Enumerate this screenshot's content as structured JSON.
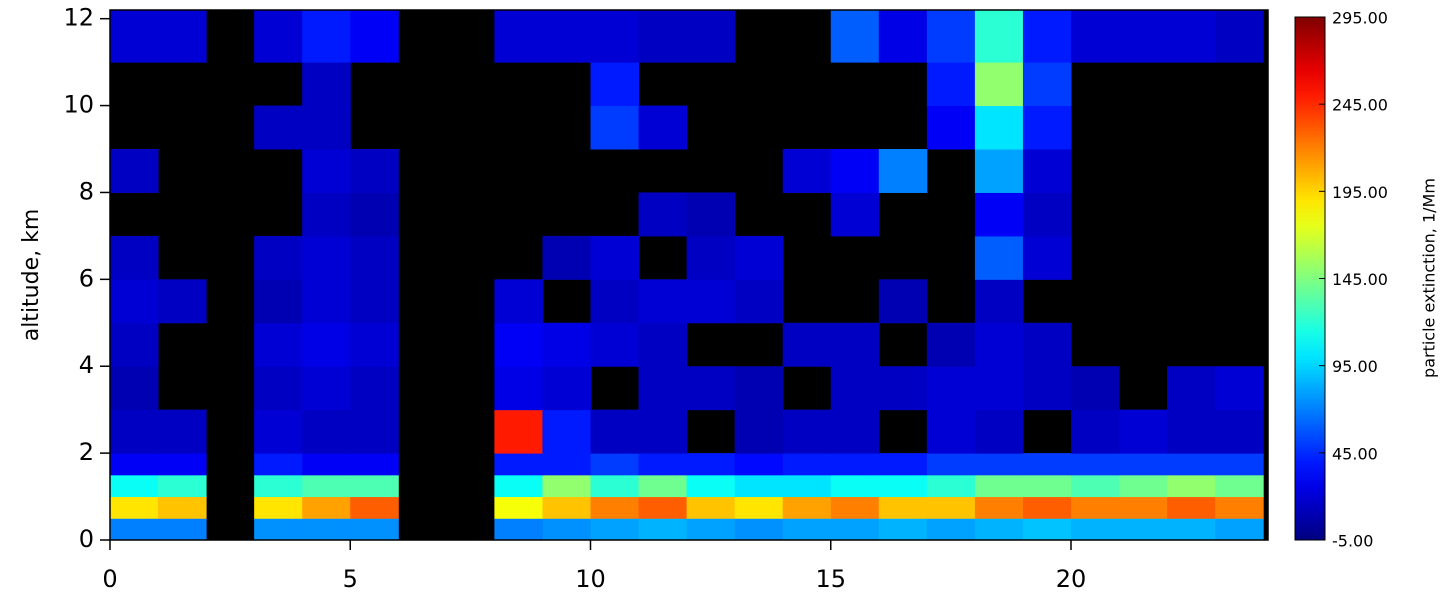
{
  "chart_data": {
    "type": "heatmap",
    "ylabel": "altitude, km",
    "colorbar_label": "particle extinction, 1/Mm",
    "colormap": "jet",
    "xlim": [
      0,
      24.1
    ],
    "ylim": [
      0,
      12.2
    ],
    "xticks": [
      0,
      5,
      10,
      15,
      20
    ],
    "yticks": [
      0,
      2,
      4,
      6,
      8,
      10,
      12
    ],
    "clim": [
      -5,
      295
    ],
    "cticks": [
      {
        "value": -5,
        "label": "-5.00"
      },
      {
        "value": 45,
        "label": "45.00"
      },
      {
        "value": 95,
        "label": "95.00"
      },
      {
        "value": 145,
        "label": "145.00"
      },
      {
        "value": 195,
        "label": "195.00"
      },
      {
        "value": 245,
        "label": "245.00"
      },
      {
        "value": 295,
        "label": "295.00"
      }
    ],
    "x_edges": [
      0,
      1,
      2,
      3,
      4,
      5,
      6,
      7,
      8,
      9,
      10,
      11,
      12,
      13,
      14,
      15,
      16,
      17,
      18,
      19,
      20,
      21,
      22,
      23,
      24
    ],
    "y_edges": [
      0,
      0.5,
      1,
      1.5,
      2,
      3,
      4,
      5,
      6,
      7,
      8,
      9,
      10,
      11,
      12.2
    ],
    "values": [
      [
        70,
        70,
        null,
        75,
        75,
        75,
        null,
        null,
        70,
        75,
        80,
        85,
        80,
        75,
        80,
        80,
        85,
        80,
        85,
        90,
        85,
        85,
        85,
        80
      ],
      [
        190,
        200,
        null,
        190,
        210,
        230,
        null,
        null,
        180,
        200,
        220,
        230,
        200,
        190,
        210,
        220,
        200,
        200,
        220,
        230,
        220,
        220,
        230,
        220
      ],
      [
        110,
        120,
        null,
        120,
        130,
        130,
        null,
        null,
        110,
        150,
        120,
        140,
        110,
        100,
        100,
        110,
        110,
        120,
        140,
        140,
        130,
        140,
        150,
        140
      ],
      [
        30,
        30,
        null,
        40,
        30,
        30,
        null,
        null,
        40,
        40,
        50,
        40,
        40,
        35,
        40,
        40,
        40,
        50,
        50,
        50,
        50,
        50,
        50,
        50
      ],
      [
        15,
        15,
        null,
        20,
        15,
        15,
        null,
        null,
        250,
        40,
        15,
        15,
        null,
        10,
        15,
        15,
        null,
        20,
        15,
        null,
        15,
        20,
        15,
        15
      ],
      [
        10,
        null,
        null,
        15,
        20,
        15,
        null,
        null,
        25,
        20,
        null,
        15,
        15,
        10,
        null,
        15,
        15,
        20,
        20,
        15,
        10,
        null,
        15,
        20
      ],
      [
        15,
        null,
        null,
        20,
        25,
        20,
        null,
        null,
        30,
        25,
        20,
        15,
        null,
        null,
        15,
        15,
        null,
        10,
        20,
        15,
        null,
        null,
        null,
        null
      ],
      [
        20,
        15,
        null,
        10,
        20,
        15,
        null,
        null,
        20,
        null,
        15,
        20,
        20,
        15,
        null,
        null,
        10,
        null,
        15,
        null,
        null,
        null,
        null,
        null
      ],
      [
        15,
        null,
        null,
        15,
        20,
        15,
        null,
        null,
        null,
        10,
        20,
        null,
        15,
        20,
        null,
        null,
        null,
        null,
        60,
        20,
        null,
        null,
        null,
        null
      ],
      [
        null,
        null,
        null,
        null,
        15,
        10,
        null,
        null,
        null,
        null,
        null,
        15,
        10,
        null,
        null,
        20,
        null,
        null,
        30,
        15,
        null,
        null,
        null,
        null
      ],
      [
        15,
        null,
        null,
        null,
        20,
        15,
        null,
        null,
        null,
        null,
        null,
        null,
        null,
        null,
        20,
        30,
        70,
        null,
        80,
        20,
        null,
        null,
        null,
        null
      ],
      [
        null,
        null,
        null,
        15,
        15,
        null,
        null,
        null,
        null,
        null,
        50,
        20,
        null,
        null,
        null,
        null,
        null,
        30,
        100,
        40,
        null,
        null,
        null,
        null
      ],
      [
        null,
        null,
        null,
        null,
        15,
        null,
        null,
        null,
        null,
        null,
        40,
        null,
        null,
        null,
        null,
        null,
        null,
        40,
        150,
        50,
        null,
        null,
        null,
        null
      ],
      [
        20,
        20,
        null,
        20,
        40,
        30,
        null,
        null,
        20,
        20,
        20,
        15,
        15,
        null,
        null,
        60,
        25,
        50,
        120,
        40,
        20,
        20,
        20,
        15
      ]
    ]
  }
}
